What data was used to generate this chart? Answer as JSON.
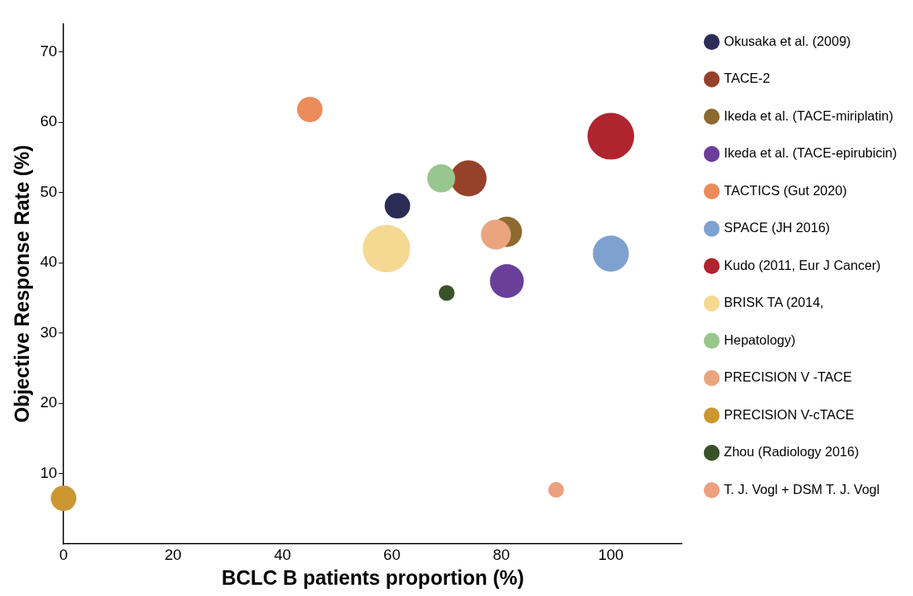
{
  "chart_data": {
    "type": "bubble",
    "xlabel": "BCLC B patients proportion (%)",
    "ylabel": "Objective Response Rate (%)",
    "xlim": [
      0,
      113
    ],
    "xticks": [
      0,
      20,
      40,
      60,
      80,
      100
    ],
    "ylim": [
      0,
      74
    ],
    "yticks": [
      10,
      20,
      30,
      40,
      50,
      60,
      70
    ],
    "grid": false,
    "legend": "right",
    "series": [
      {
        "name": "Okusaka et al. (2009)",
        "color": "#2b2d57",
        "x": [
          61
        ],
        "values": [
          48.1
        ],
        "sizes": [
          0.29
        ]
      },
      {
        "name": "TACE-2",
        "color": "#96422b",
        "x": [
          74
        ],
        "values": [
          52
        ],
        "sizes": [
          0.58
        ]
      },
      {
        "name": "Ikeda et al. (TACE-miriplatin)",
        "color": "#8c6a30",
        "x": [
          81
        ],
        "values": [
          44.4
        ],
        "sizes": [
          0.41
        ]
      },
      {
        "name": "Ikeda et al. (TACE-epirubicin)",
        "color": "#6a3f9a",
        "x": [
          81
        ],
        "values": [
          37.4
        ],
        "sizes": [
          0.51
        ]
      },
      {
        "name": "TACTICS (Gut 2020)",
        "color": "#ec8c5c",
        "x": [
          45
        ],
        "values": [
          61.8
        ],
        "sizes": [
          0.29
        ]
      },
      {
        "name": "SPACE (JH 2016)",
        "color": "#7fa1d0",
        "x": [
          100
        ],
        "values": [
          41.3
        ],
        "sizes": [
          0.58
        ]
      },
      {
        "name": "Kudo (2011, Eur J Cancer)",
        "color": "#b0242e",
        "x": [
          100
        ],
        "values": [
          58
        ],
        "sizes": [
          0.97
        ]
      },
      {
        "name": "BRISK TA (2014,",
        "color": "#f5d992",
        "x": [
          59
        ],
        "values": [
          42
        ],
        "sizes": [
          1
        ]
      },
      {
        "name": "Hepatology)",
        "color": "#98c68e",
        "x": [
          69
        ],
        "values": [
          52
        ],
        "sizes": [
          0.35
        ]
      },
      {
        "name": "PRECISION V -TACE",
        "color": "#eaa57e",
        "x": [
          79
        ],
        "values": [
          44
        ],
        "sizes": [
          0.4
        ]
      },
      {
        "name": "PRECISION V-cTACE",
        "color": "#cc9630",
        "x": [
          0
        ],
        "values": [
          6.5
        ],
        "sizes": [
          0.29
        ]
      },
      {
        "name": "Zhou (Radiology 2016)",
        "color": "#385229",
        "x": [
          70
        ],
        "values": [
          35.7
        ],
        "sizes": [
          0.11
        ]
      },
      {
        "name": "T. J. Vogl + DSM T. J. Vogl",
        "color": "#eda07e",
        "x": [
          90
        ],
        "values": [
          7.7
        ],
        "sizes": [
          0.11
        ]
      }
    ]
  }
}
